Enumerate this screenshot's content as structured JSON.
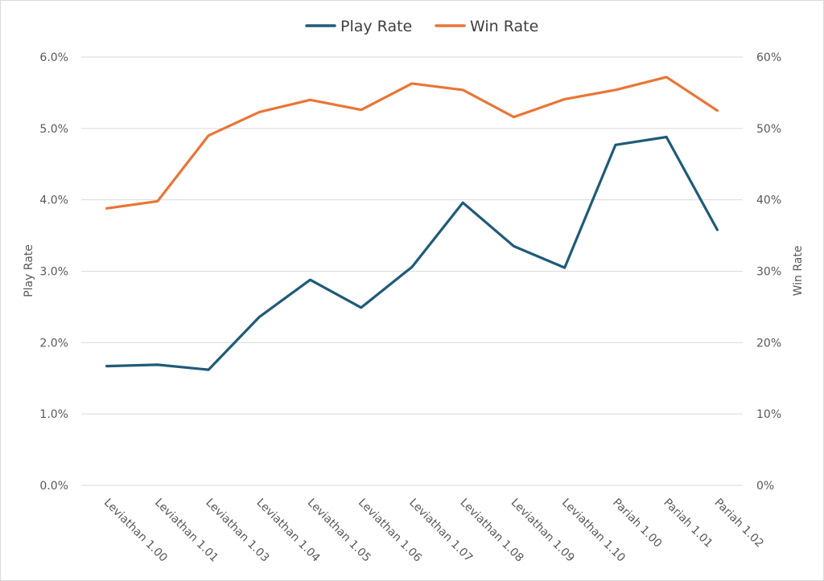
{
  "chart_data": {
    "type": "line",
    "categories": [
      "Leviathan 1.00",
      "Leviathan 1.01",
      "Leviathan 1.03",
      "Leviathan 1.04",
      "Leviathan 1.05",
      "Leviathan 1.06",
      "Leviathan 1.07",
      "Leviathan 1.08",
      "Leviathan 1.09",
      "Leviathan 1.10",
      "Pariah 1.00",
      "Pariah 1.01",
      "Pariah 1.02"
    ],
    "series": [
      {
        "name": "Play Rate",
        "axis": "left",
        "color": "#1f5b78",
        "values": [
          1.67,
          1.69,
          1.62,
          2.36,
          2.88,
          2.49,
          3.06,
          3.96,
          3.35,
          3.05,
          4.77,
          4.88,
          3.58
        ]
      },
      {
        "name": "Win Rate",
        "axis": "right",
        "color": "#ea7535",
        "values": [
          38.8,
          39.8,
          49.0,
          52.3,
          54.0,
          52.6,
          56.3,
          55.4,
          51.6,
          54.1,
          55.4,
          57.2,
          52.5
        ]
      }
    ],
    "y_left": {
      "label": "Play Rate",
      "range": [
        0,
        6
      ],
      "ticks": [
        "0.0%",
        "1.0%",
        "2.0%",
        "3.0%",
        "4.0%",
        "5.0%",
        "6.0%"
      ]
    },
    "y_right": {
      "label": "Win Rate",
      "range": [
        0,
        60
      ],
      "ticks": [
        "0%",
        "10%",
        "20%",
        "30%",
        "40%",
        "50%",
        "60%"
      ]
    },
    "grid": true,
    "legend": "top-center"
  }
}
